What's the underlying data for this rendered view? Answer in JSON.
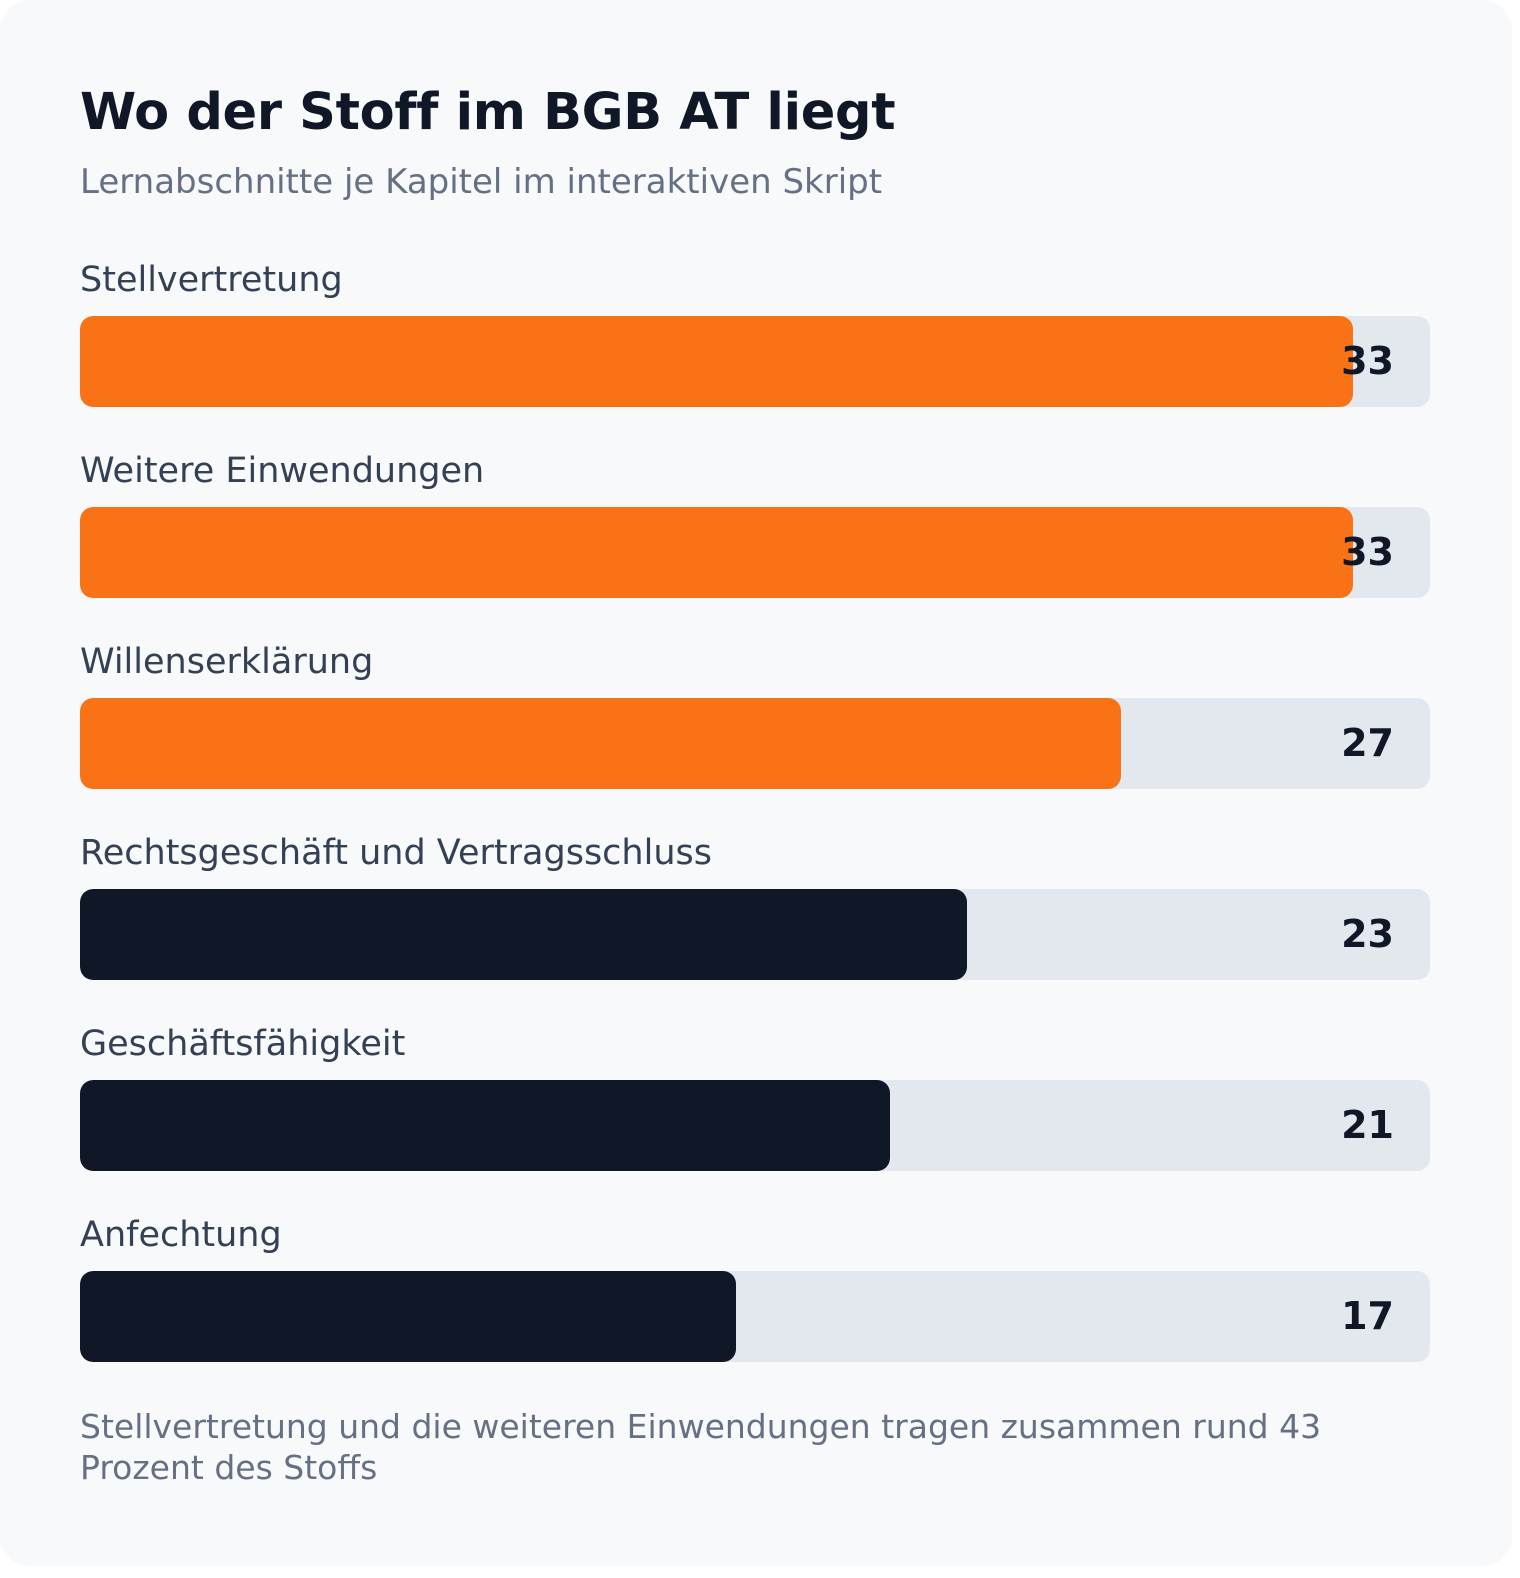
{
  "card": {
    "title": "Wo der Stoff im BGB AT liegt",
    "subtitle": "Lernabschnitte je Kapitel im interaktiven Skript",
    "footnote": "Stellvertretung und die weiteren Einwendungen tragen zusammen rund 43 Prozent des Stoffs"
  },
  "colors": {
    "highlight": "#f97316",
    "default": "#101828",
    "track": "#e3e8ef",
    "background": "#f8f9fb"
  },
  "chart_data": {
    "type": "bar",
    "orientation": "horizontal",
    "title": "Wo der Stoff im BGB AT liegt",
    "subtitle": "Lernabschnitte je Kapitel im interaktiven Skript",
    "categories": [
      "Stellvertretung",
      "Weitere Einwendungen",
      "Willenserklärung",
      "Rechtsgeschäft und Vertragsschluss",
      "Geschäftsfähigkeit",
      "Anfechtung"
    ],
    "values": [
      33,
      33,
      27,
      23,
      21,
      17
    ],
    "value_labels": [
      "33",
      "33",
      "27",
      "23",
      "21",
      "17"
    ],
    "highlighted": [
      true,
      true,
      true,
      false,
      false,
      false
    ],
    "xlim": [
      0,
      35
    ],
    "grid": false,
    "legend": "none"
  }
}
